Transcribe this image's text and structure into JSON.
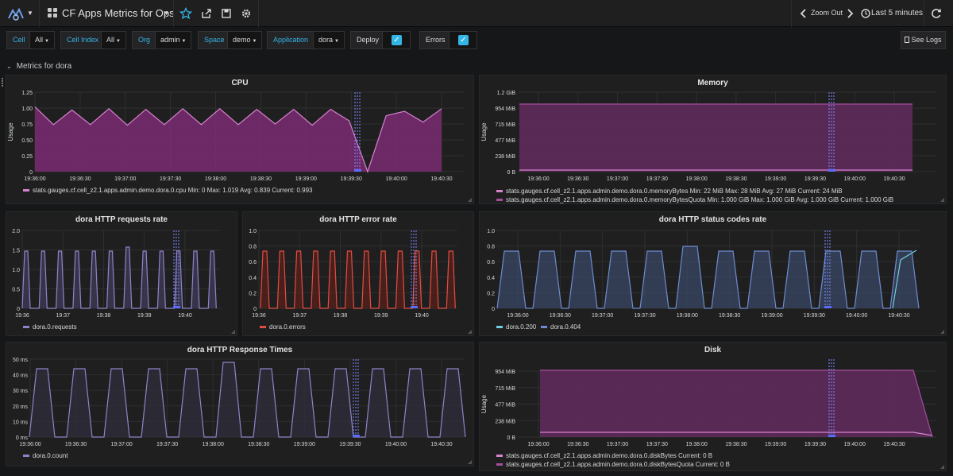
{
  "navbar": {
    "dashboard_title": "CF Apps Metrics for Ops",
    "zoom_out": "Zoom Out",
    "time_range": "Last 5 minutes",
    "see_logs": "See Logs"
  },
  "variables": [
    {
      "label": "Cell",
      "value": "All"
    },
    {
      "label": "Cell Index",
      "value": "All"
    },
    {
      "label": "Org",
      "value": "admin"
    },
    {
      "label": "Space",
      "value": "demo"
    },
    {
      "label": "Application",
      "value": "dora"
    }
  ],
  "toggles": [
    {
      "label": "Deploy",
      "checked": true
    },
    {
      "label": "Errors",
      "checked": true
    }
  ],
  "row_title": "Metrics for dora",
  "colors": {
    "accent": "#33b5e5",
    "magenta": "#d683ce",
    "magenta_fill": "#7a2b72",
    "purple_fill": "#4d2a4f",
    "red": "#e24d42",
    "lavender": "#8f83c8",
    "blue": "#6d8bcf",
    "cyan": "#6ed0e0",
    "deploy_marker": "#7d8bff"
  },
  "panels": {
    "cpu": {
      "title": "CPU",
      "ylabel": "Usage",
      "legend": [
        "stats.gauges.cf.cell_z2.1.apps.admin.demo.dora.0.cpu  Min: 0  Max: 1.019  Avg: 0.839  Current: 0.993"
      ],
      "x_ticks": [
        "19:36:00",
        "19:36:30",
        "19:37:00",
        "19:37:30",
        "19:38:00",
        "19:38:30",
        "19:39:00",
        "19:39:30",
        "19:40:00",
        "19:40:30"
      ],
      "y_ticks": [
        "0",
        "0.25",
        "0.50",
        "0.75",
        "1.00",
        "1.25"
      ]
    },
    "memory": {
      "title": "Memory",
      "ylabel": "Usage",
      "legend": [
        "stats.gauges.cf.cell_z2.1.apps.admin.demo.dora.0.memoryBytes  Min: 22 MiB  Max: 28 MiB  Avg: 27 MiB  Current: 24 MiB",
        "stats.gauges.cf.cell_z2.1.apps.admin.demo.dora.0.memoryBytesQuota  Min: 1.000 GiB  Max: 1.000 GiB  Avg: 1.000 GiB  Current: 1.000 GiB"
      ],
      "x_ticks": [
        "19:36:00",
        "19:36:30",
        "19:37:00",
        "19:37:30",
        "19:38:00",
        "19:38:30",
        "19:39:00",
        "19:39:30",
        "19:40:00",
        "19:40:30"
      ],
      "y_ticks": [
        "0 B",
        "238 MiB",
        "477 MiB",
        "715 MiB",
        "954 MiB",
        "1.2 GiB"
      ]
    },
    "requests": {
      "title": "dora HTTP requests rate",
      "legend": [
        "dora.0.requests"
      ],
      "x_ticks": [
        "19:36",
        "19:37",
        "19:38",
        "19:39",
        "19:40"
      ],
      "y_ticks": [
        "0",
        "0.5",
        "1.0",
        "1.5",
        "2.0"
      ]
    },
    "errors": {
      "title": "dora HTTP error rate",
      "legend": [
        "dora.0.errors"
      ],
      "x_ticks": [
        "19:36",
        "19:37",
        "19:38",
        "19:39",
        "19:40"
      ],
      "y_ticks": [
        "0",
        "0.2",
        "0.4",
        "0.6",
        "0.8",
        "1.0"
      ]
    },
    "status": {
      "title": "dora HTTP status codes rate",
      "legend": [
        "dora.0.200",
        "dora.0.404"
      ],
      "x_ticks": [
        "19:36:00",
        "19:36:30",
        "19:37:00",
        "19:37:30",
        "19:38:00",
        "19:38:30",
        "19:39:00",
        "19:39:30",
        "19:40:00",
        "19:40:30"
      ],
      "y_ticks": [
        "0",
        "0.2",
        "0.4",
        "0.6",
        "0.8",
        "1.0"
      ]
    },
    "response": {
      "title": "dora HTTP Response Times",
      "legend": [
        "dora.0.count"
      ],
      "x_ticks": [
        "19:36:00",
        "19:36:30",
        "19:37:00",
        "19:37:30",
        "19:38:00",
        "19:38:30",
        "19:39:00",
        "19:39:30",
        "19:40:00",
        "19:40:30"
      ],
      "y_ticks": [
        "0 ms",
        "10 ms",
        "20 ms",
        "30 ms",
        "40 ms",
        "50 ms"
      ]
    },
    "disk": {
      "title": "Disk",
      "ylabel": "Usage",
      "legend": [
        "stats.gauges.cf.cell_z2.1.apps.admin.demo.dora.0.diskBytes  Current: 0 B",
        "stats.gauges.cf.cell_z2.1.apps.admin.demo.dora.0.diskBytesQuota  Current: 0 B"
      ],
      "x_ticks": [
        "19:36:00",
        "19:36:30",
        "19:37:00",
        "19:37:30",
        "19:38:00",
        "19:38:30",
        "19:39:00",
        "19:39:30",
        "19:40:00",
        "19:40:30"
      ],
      "y_ticks": [
        "0 B",
        "238 MiB",
        "477 MiB",
        "715 MiB",
        "954 MiB"
      ]
    }
  }
}
